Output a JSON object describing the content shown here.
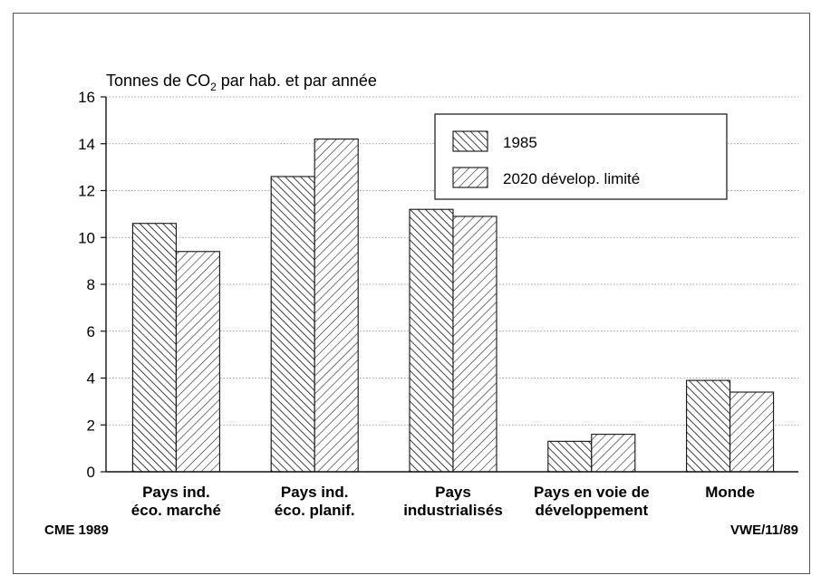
{
  "chart_data": {
    "type": "bar",
    "title": "Tonnes de CO₂ par hab. et par année",
    "title_parts": {
      "before": "Tonnes de CO",
      "subscript": "2",
      "after": " par hab. et par année"
    },
    "categories": [
      [
        "Pays ind.",
        "éco. marché"
      ],
      [
        "Pays ind.",
        "éco. planif."
      ],
      [
        "Pays",
        "industrialisés"
      ],
      [
        "Pays en voie de",
        "développement"
      ],
      [
        "Monde"
      ]
    ],
    "series": [
      {
        "name": "1985",
        "values": [
          10.6,
          12.6,
          11.2,
          1.3,
          3.9
        ],
        "pattern": "backslash"
      },
      {
        "name": "2020 dévelop. limité",
        "values": [
          9.4,
          14.2,
          10.9,
          1.6,
          3.4
        ],
        "pattern": "slash"
      }
    ],
    "ylim": [
      0,
      16
    ],
    "yticks": [
      0,
      2,
      4,
      6,
      8,
      10,
      12,
      14,
      16
    ],
    "grid": true,
    "legend": "top-right"
  },
  "footer": {
    "left": "CME 1989",
    "right": "VWE/11/89"
  }
}
